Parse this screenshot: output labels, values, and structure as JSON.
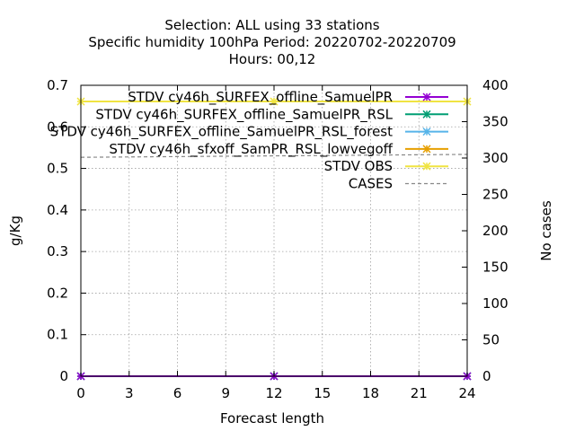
{
  "chart_data": {
    "type": "line",
    "title_lines": [
      "Selection: ALL using    33 stations",
      "Specific humidity 100hPa   Period: 20220702-20220709",
      "Hours:  00,12"
    ],
    "xlabel": "Forecast length",
    "ylabel": "g/Kg",
    "y2label": "No cases",
    "xlim": [
      0,
      24
    ],
    "ylim": [
      0,
      0.7
    ],
    "y2lim": [
      0,
      400
    ],
    "x_ticks": [
      "0",
      "3",
      "6",
      "9",
      "12",
      "15",
      "18",
      "21",
      "24"
    ],
    "y_ticks": [
      "0",
      "0.1",
      "0.2",
      "0.3",
      "0.4",
      "0.5",
      "0.6",
      "0.7"
    ],
    "y2_ticks": [
      "0",
      "50",
      "100",
      "150",
      "200",
      "250",
      "300",
      "350",
      "400"
    ],
    "grid": true,
    "legend_position": "top-right",
    "series": [
      {
        "name": "STDV cy46h_SURFEX_offline_SamuelPR",
        "color": "#9400d3",
        "axis": "y",
        "x": [
          0,
          12,
          24
        ],
        "values": [
          0,
          0,
          0
        ]
      },
      {
        "name": "STDV cy46h_SURFEX_offline_SamuelPR_RSL",
        "color": "#009e73",
        "axis": "y",
        "x": [
          0,
          12,
          24
        ],
        "values": [
          0,
          0,
          0
        ]
      },
      {
        "name": "STDV cy46h_SURFEX_offline_SamuelPR_RSL_forest",
        "color": "#56b4e9",
        "axis": "y",
        "x": [
          0,
          12,
          24
        ],
        "values": [
          0,
          0,
          0
        ]
      },
      {
        "name": "STDV cy46h_sfxoff_SamPR_RSL_lowvegoff",
        "color": "#e69f00",
        "axis": "y",
        "x": [
          0,
          12,
          24
        ],
        "values": [
          0,
          0,
          0
        ]
      },
      {
        "name": "STDV OBS",
        "color": "#f0e442",
        "axis": "y",
        "x": [
          0,
          12,
          24
        ],
        "values": [
          0.661,
          0.661,
          0.661
        ]
      },
      {
        "name": "CASES",
        "color": "#888888",
        "axis": "y2",
        "dashed": true,
        "x": [
          0,
          12,
          24
        ],
        "values": [
          301,
          303,
          305
        ]
      }
    ]
  }
}
